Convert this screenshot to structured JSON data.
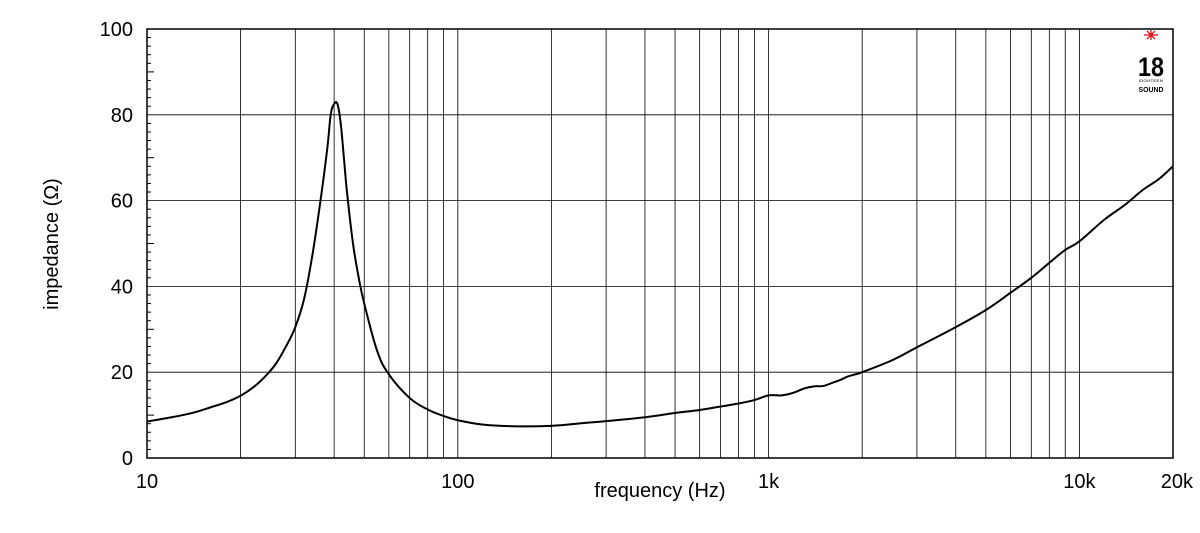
{
  "chart_data": {
    "type": "line",
    "xscale": "log",
    "xlabel": "frequency (Hz)",
    "ylabel": "impedance (Ω)",
    "xlim": [
      10,
      20000
    ],
    "ylim": [
      0,
      100
    ],
    "grid": true,
    "x_ticks": [
      {
        "value": 10,
        "label": "10"
      },
      {
        "value": 100,
        "label": "100"
      },
      {
        "value": 1000,
        "label": "1k"
      },
      {
        "value": 10000,
        "label": "10k"
      },
      {
        "value": 20000,
        "label": "20k"
      }
    ],
    "y_ticks": [
      {
        "value": 0,
        "label": "0"
      },
      {
        "value": 20,
        "label": "20"
      },
      {
        "value": 40,
        "label": "40"
      },
      {
        "value": 60,
        "label": "60"
      },
      {
        "value": 80,
        "label": "80"
      },
      {
        "value": 100,
        "label": "100"
      }
    ],
    "series": [
      {
        "color": "#000000",
        "x": [
          10,
          12,
          14,
          16,
          18,
          20,
          22,
          24,
          26,
          28,
          30,
          32,
          34,
          36,
          38,
          39,
          40,
          41,
          42,
          43,
          44,
          46,
          48,
          50,
          55,
          60,
          70,
          80,
          90,
          100,
          120,
          150,
          200,
          250,
          300,
          400,
          500,
          600,
          700,
          800,
          900,
          1000,
          1100,
          1200,
          1300,
          1400,
          1500,
          1600,
          1700,
          1800,
          1900,
          2000,
          2500,
          3000,
          4000,
          5000,
          6000,
          7000,
          8000,
          9000,
          10000,
          12000,
          14000,
          16000,
          18000,
          20000
        ],
        "y": [
          8.5,
          9.5,
          10.5,
          11.8,
          13,
          14.5,
          16.5,
          19,
          22,
          26,
          30.5,
          37,
          47,
          59,
          72,
          80,
          82.5,
          82.5,
          78,
          70,
          62,
          50,
          42,
          36,
          25,
          19.5,
          14,
          11.3,
          9.8,
          8.8,
          7.8,
          7.4,
          7.5,
          8.1,
          8.6,
          9.5,
          10.5,
          11.2,
          12,
          12.7,
          13.5,
          14.6,
          14.6,
          15.2,
          16.2,
          16.7,
          16.8,
          17.5,
          18.2,
          19.0,
          19.5,
          20.0,
          22.8,
          25.8,
          30.5,
          34.5,
          38.5,
          42,
          45.5,
          48.5,
          50.5,
          55.5,
          59,
          62.5,
          65,
          68
        ]
      }
    ]
  },
  "logo": {
    "number": "18",
    "tagline": "EIGHTEEN",
    "word": "SOUND",
    "star_color": "#e0141e"
  }
}
